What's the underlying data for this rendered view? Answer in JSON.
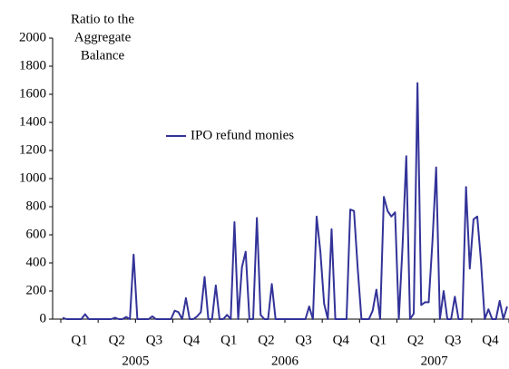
{
  "chart_data": {
    "type": "line",
    "y_label_lines": [
      "Ratio to the",
      "Aggregate",
      "Balance"
    ],
    "categories": [
      null,
      null,
      null,
      null,
      null,
      "Q1",
      null,
      null,
      null,
      null,
      null,
      null,
      null,
      null,
      null,
      "Q2",
      null,
      null,
      null,
      null,
      null,
      null,
      null,
      null,
      null,
      "Q3",
      null,
      null,
      null,
      null,
      null,
      null,
      null,
      null,
      null,
      "Q4",
      null,
      null,
      null,
      null,
      null,
      null,
      null,
      null,
      null,
      "Q1",
      null,
      null,
      null,
      null,
      null,
      null,
      null,
      null,
      null,
      "Q2",
      null,
      null,
      null,
      null,
      null,
      null,
      null,
      null,
      null,
      "Q3",
      null,
      null,
      null,
      null,
      null,
      null,
      null,
      null,
      null,
      "Q4",
      null,
      null,
      null,
      null,
      null,
      null,
      null,
      null,
      null,
      "Q1",
      null,
      null,
      null,
      null,
      null,
      null,
      null,
      null,
      null,
      "Q2",
      null,
      null,
      null,
      null,
      null,
      null,
      null,
      null,
      null,
      "Q3",
      null,
      null,
      null,
      null,
      null,
      null,
      null,
      null,
      null,
      "Q4",
      null,
      null,
      null,
      null
    ],
    "x_groups": [
      "2005",
      "2006",
      "2007"
    ],
    "series": [
      {
        "name": "IPO refund monies",
        "color": "#333399",
        "values": [
          10,
          0,
          0,
          0,
          0,
          0,
          35,
          0,
          0,
          0,
          0,
          0,
          0,
          0,
          10,
          0,
          0,
          15,
          0,
          460,
          0,
          0,
          0,
          0,
          20,
          0,
          0,
          0,
          0,
          0,
          60,
          50,
          0,
          150,
          0,
          0,
          20,
          50,
          300,
          0,
          0,
          240,
          0,
          0,
          30,
          0,
          690,
          0,
          370,
          480,
          0,
          0,
          720,
          30,
          0,
          0,
          250,
          0,
          0,
          0,
          0,
          0,
          0,
          0,
          0,
          0,
          90,
          0,
          730,
          480,
          110,
          0,
          640,
          0,
          0,
          0,
          0,
          780,
          770,
          360,
          0,
          0,
          0,
          60,
          210,
          0,
          870,
          770,
          730,
          760,
          0,
          520,
          1160,
          0,
          40,
          1680,
          100,
          120,
          120,
          550,
          1080,
          0,
          200,
          0,
          0,
          160,
          0,
          0,
          940,
          360,
          710,
          730,
          410,
          0,
          70,
          0,
          0,
          130,
          0,
          90
        ]
      }
    ],
    "ylim": [
      0,
      2000
    ],
    "yticks": [
      0,
      200,
      400,
      600,
      800,
      1000,
      1200,
      1400,
      1600,
      1800,
      2000
    ],
    "grid": false
  }
}
